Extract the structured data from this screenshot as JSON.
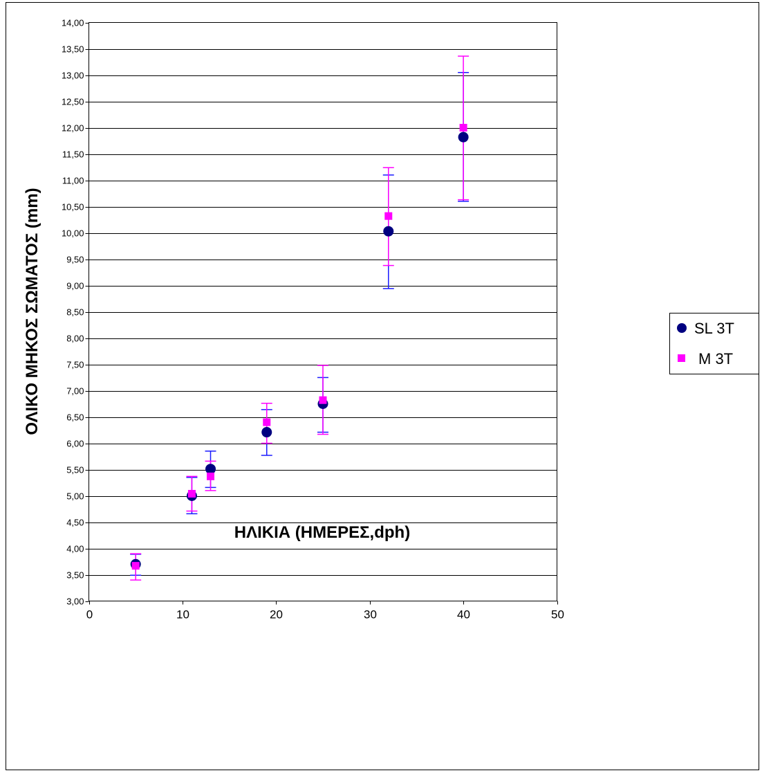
{
  "chart_data": {
    "type": "scatter",
    "xlabel": "ΗΛΙΚΙΑ (ΗΜΕΡΕΣ,dph)",
    "ylabel": "ΟΛΙΚΟ ΜΗΚΟΣ ΣΩΜΑΤΟΣ (mm)",
    "xlim": [
      0,
      50
    ],
    "ylim": [
      3.0,
      14.0
    ],
    "x_ticks": [
      "0",
      "10",
      "20",
      "30",
      "40",
      "50"
    ],
    "y_ticks": [
      "3,00",
      "3,50",
      "4,00",
      "4,50",
      "5,00",
      "5,50",
      "6,00",
      "6,50",
      "7,00",
      "7,50",
      "8,00",
      "8,50",
      "9,00",
      "9,50",
      "10,00",
      "10,50",
      "11,00",
      "11,50",
      "12,00",
      "12,50",
      "13,00",
      "13,50",
      "14,00"
    ],
    "grid": "horizontal major gridlines",
    "legend_position": "right",
    "series": [
      {
        "name": "SL 3T",
        "marker": "circle",
        "color": "#000080",
        "error_bar_color": "#1a1aff",
        "x": [
          5,
          11,
          13,
          19,
          25,
          32,
          40
        ],
        "y": [
          3.7,
          5.0,
          5.51,
          6.21,
          6.75,
          10.03,
          11.82
        ],
        "err_low": [
          3.49,
          4.66,
          5.16,
          5.77,
          6.21,
          8.94,
          10.6
        ],
        "err_high": [
          3.89,
          5.35,
          5.85,
          6.64,
          7.25,
          11.1,
          13.05
        ]
      },
      {
        "name": "M 3T",
        "marker": "square",
        "color": "#ff00ff",
        "error_bar_color": "#ff00ff",
        "x": [
          5,
          11,
          13,
          19,
          25,
          32,
          40
        ],
        "y": [
          3.67,
          5.04,
          5.37,
          6.4,
          6.82,
          10.32,
          12.0
        ],
        "err_low": [
          3.4,
          4.71,
          5.1,
          6.0,
          6.17,
          9.38,
          10.63
        ],
        "err_high": [
          3.9,
          5.37,
          5.66,
          6.76,
          7.48,
          11.24,
          13.36
        ]
      }
    ]
  }
}
